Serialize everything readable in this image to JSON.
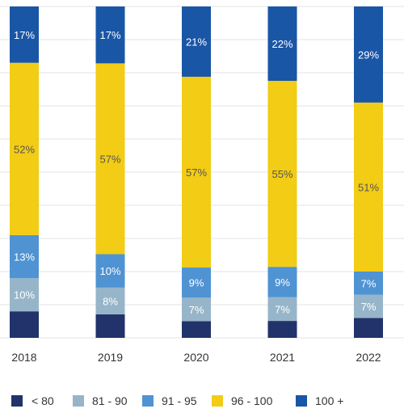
{
  "chart_data": {
    "type": "bar",
    "stacked": true,
    "categories": [
      "2018",
      "2019",
      "2020",
      "2021",
      "2022"
    ],
    "ylim": [
      0,
      100
    ],
    "grid": true,
    "legend_position": "bottom",
    "series": [
      {
        "name": "< 80",
        "color": "#22336b",
        "values": [
          8,
          7,
          5,
          5,
          6
        ],
        "labels": [
          "",
          "",
          "",
          "",
          ""
        ]
      },
      {
        "name": "81 - 90",
        "color": "#97b5c9",
        "values": [
          10,
          8,
          7,
          7,
          7
        ],
        "labels": [
          "10%",
          "8%",
          "7%",
          "7%",
          "7%"
        ]
      },
      {
        "name": "91 - 95",
        "color": "#4f93d3",
        "values": [
          13,
          10,
          9,
          9,
          7
        ],
        "labels": [
          "13%",
          "10%",
          "9%",
          "9%",
          "7%"
        ]
      },
      {
        "name": "96 - 100",
        "color": "#f2cc15",
        "values": [
          52,
          57,
          57,
          55,
          51
        ],
        "labels": [
          "52%",
          "57%",
          "57%",
          "55%",
          "51%"
        ]
      },
      {
        "name": "100 +",
        "color": "#1a56a6",
        "values": [
          17,
          17,
          21,
          22,
          29
        ],
        "labels": [
          "17%",
          "17%",
          "21%",
          "22%",
          "29%"
        ]
      }
    ]
  }
}
